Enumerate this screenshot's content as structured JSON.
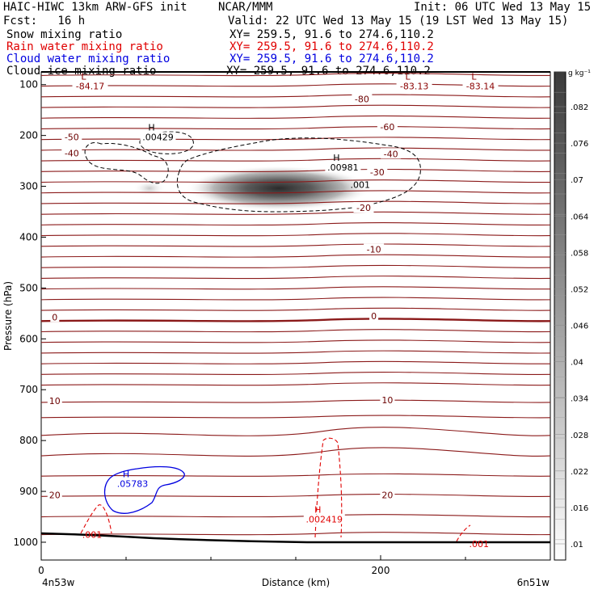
{
  "header": {
    "title_left": "HAIC-HIWC 13km ARW-GFS init",
    "org": "NCAR/MMM",
    "init": "Init: 06 UTC Wed 13 May 15",
    "fcst": "Fcst:   16 h",
    "valid": "Valid: 22 UTC Wed 13 May 15 (19 LST Wed 13 May 15)"
  },
  "fields": [
    {
      "label": "Snow mixing ratio",
      "xy": "XY= 259.5, 91.6 to 274.6,110.2",
      "color": "#000000"
    },
    {
      "label": "Rain water mixing ratio",
      "xy": "XY= 259.5, 91.6 to 274.6,110.2",
      "color": "#e00000"
    },
    {
      "label": "Cloud water mixing ratio",
      "xy": "XY= 259.5, 91.6 to 274.6,110.2",
      "color": "#0000e0"
    },
    {
      "label": "Cloud ice mixing ratio",
      "xy": "XY= 259.5, 91.6 to 274.6,110.2",
      "color": "#000000"
    }
  ],
  "colorbar": {
    "unit": "g kg⁻¹",
    "ticks": [
      ".082",
      ".076",
      ".07",
      ".064",
      ".058",
      ".052",
      ".046",
      ".04",
      ".034",
      ".028",
      ".022",
      ".016",
      ".01"
    ]
  },
  "chart_data": {
    "type": "cross-section contour",
    "xlabel": "Distance (km)",
    "ylabel": "Pressure (hPa)",
    "x_ticks": [
      "0",
      "200"
    ],
    "x_endpoints": [
      "4n53w",
      "6n51w"
    ],
    "y_ticks": [
      "100",
      "200",
      "300",
      "400",
      "500",
      "600",
      "700",
      "800",
      "900",
      "1000"
    ],
    "xlim": [
      0,
      300
    ],
    "ylim": [
      1035,
      75
    ],
    "temperature_labels": [
      {
        "text": "-80",
        "x": 189,
        "p": 128
      },
      {
        "text": "-60",
        "x": 204,
        "p": 183
      },
      {
        "text": "-50",
        "x": 18,
        "p": 203
      },
      {
        "text": "-40",
        "x": 18,
        "p": 235
      },
      {
        "text": "-40",
        "x": 206,
        "p": 236
      },
      {
        "text": "-30",
        "x": 198,
        "p": 272
      },
      {
        "text": "-20",
        "x": 190,
        "p": 342
      },
      {
        "text": "-10",
        "x": 196,
        "p": 424
      },
      {
        "text": "0",
        "x": 8,
        "p": 557
      },
      {
        "text": "0",
        "x": 196,
        "p": 555
      },
      {
        "text": "10",
        "x": 8,
        "p": 722
      },
      {
        "text": "10",
        "x": 204,
        "p": 720
      },
      {
        "text": "20",
        "x": 8,
        "p": 907
      },
      {
        "text": "20",
        "x": 204,
        "p": 907
      }
    ],
    "extrema": [
      {
        "type": "L",
        "value": "-84.17",
        "x": 25,
        "p": 90,
        "color": "#8b0000"
      },
      {
        "type": "L",
        "value": "-83.13",
        "x": 216,
        "p": 90,
        "color": "#8b0000"
      },
      {
        "type": "L",
        "value": "-83.14",
        "x": 255,
        "p": 90,
        "color": "#8b0000"
      },
      {
        "type": "H",
        "value": ".00429",
        "x": 65,
        "p": 190,
        "color": "#000000"
      },
      {
        "type": "H",
        "value": ".00981",
        "x": 174,
        "p": 250,
        "color": "#000000"
      },
      {
        "type": "H",
        "value": ".05783",
        "x": 50,
        "p": 872,
        "color": "#0000e0"
      },
      {
        "type": "H",
        "value": ".002419",
        "x": 163,
        "p": 942,
        "color": "#e00000"
      }
    ],
    "contour_labels": [
      {
        "text": ".001",
        "x": 188,
        "p": 297,
        "color": "#000000"
      },
      {
        "text": ".001",
        "x": 30,
        "p": 985,
        "color": "#e00000"
      },
      {
        "text": ".001",
        "x": 258,
        "p": 1003,
        "color": "#e00000"
      }
    ]
  }
}
